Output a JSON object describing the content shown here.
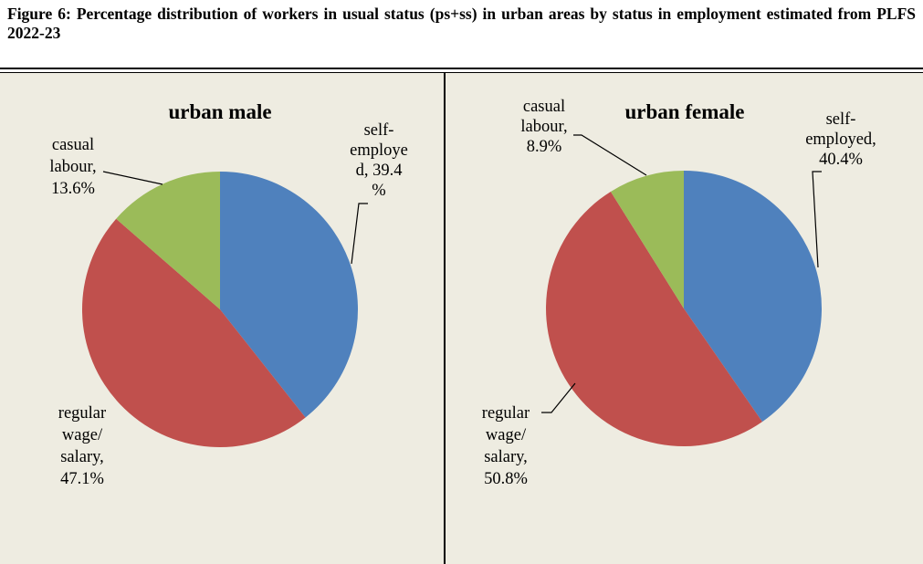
{
  "figure_title": "Figure 6: Percentage distribution of workers in usual status (ps+ss) in urban areas by status in employment estimated from PLFS 2022-23",
  "colors": {
    "self_employed": "#4f81bd",
    "regular_wage": "#c0504d",
    "casual_labour": "#9bbb59",
    "background": "#eeece1"
  },
  "chart_data": [
    {
      "type": "pie",
      "title": "urban male",
      "slices": [
        {
          "name": "self-employed",
          "value": 39.4,
          "label_lines": [
            "self-",
            "employe",
            "d, 39.4",
            "%"
          ]
        },
        {
          "name": "regular wage/ salary",
          "value": 47.1,
          "label_lines": [
            "regular",
            "wage/",
            "salary,",
            "47.1%"
          ]
        },
        {
          "name": "casual labour",
          "value": 13.6,
          "label_lines": [
            "casual",
            "labour,",
            "13.6%"
          ]
        }
      ]
    },
    {
      "type": "pie",
      "title": "urban female",
      "slices": [
        {
          "name": "self-employed",
          "value": 40.4,
          "label_lines": [
            "self-",
            "employed,",
            "40.4%"
          ]
        },
        {
          "name": "regular wage/ salary",
          "value": 50.8,
          "label_lines": [
            "regular",
            "wage/",
            "salary,",
            "50.8%"
          ]
        },
        {
          "name": "casual labour",
          "value": 8.9,
          "label_lines": [
            "casual",
            "labour,",
            "8.9%"
          ]
        }
      ]
    }
  ]
}
